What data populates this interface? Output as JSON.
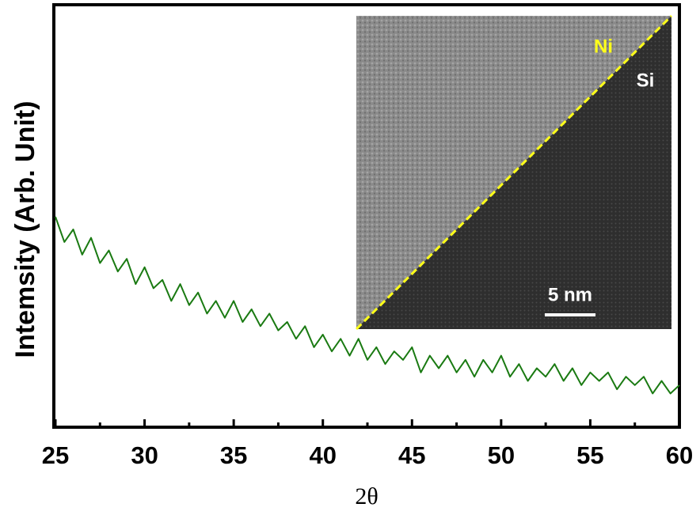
{
  "chart_data": {
    "type": "line",
    "y_label": "Intemsity (Arb. Unit)",
    "x_label": "2θ",
    "x": [
      25,
      25.5,
      26,
      26.5,
      27,
      27.5,
      28,
      28.5,
      29,
      29.5,
      30,
      30.5,
      31,
      31.5,
      32,
      32.5,
      33,
      33.5,
      34,
      34.5,
      35,
      35.5,
      36,
      36.5,
      37,
      37.5,
      38,
      38.5,
      39,
      39.5,
      40,
      40.5,
      41,
      41.5,
      42,
      42.5,
      43,
      43.5,
      44,
      44.5,
      45,
      45.5,
      46,
      46.5,
      47,
      47.5,
      48,
      48.5,
      49,
      49.5,
      50,
      50.5,
      51,
      51.5,
      52,
      52.5,
      53,
      53.5,
      54,
      54.5,
      55,
      55.5,
      56,
      56.5,
      57,
      57.5,
      58,
      58.5,
      59,
      59.5,
      60
    ],
    "series": [
      {
        "color": "#1a7a12",
        "values": [
          50,
          44,
          47,
          41,
          45,
          39,
          42,
          37,
          40,
          34,
          38,
          33,
          35,
          30,
          34,
          29,
          32,
          27,
          30,
          26,
          30,
          25,
          28,
          24,
          27,
          23,
          25,
          21,
          24,
          19,
          22,
          18,
          21,
          17,
          21,
          16,
          19,
          15,
          18,
          16,
          19,
          13,
          17,
          14,
          17,
          13,
          16,
          12,
          16,
          13,
          17,
          12,
          15,
          11,
          14,
          12,
          15,
          11,
          14,
          10,
          13,
          11,
          13,
          9,
          12,
          10,
          12,
          8,
          11,
          8,
          10
        ]
      }
    ],
    "xlim": [
      25,
      60
    ],
    "ylim": [
      0,
      100
    ],
    "xticks": [
      25,
      30,
      35,
      40,
      45,
      50,
      55,
      60
    ],
    "xticks_minor": [
      27.5,
      32.5,
      37.5,
      42.5,
      47.5,
      52.5,
      57.5
    ],
    "annotations": [
      "Ni",
      "Si",
      "5 nm"
    ]
  }
}
